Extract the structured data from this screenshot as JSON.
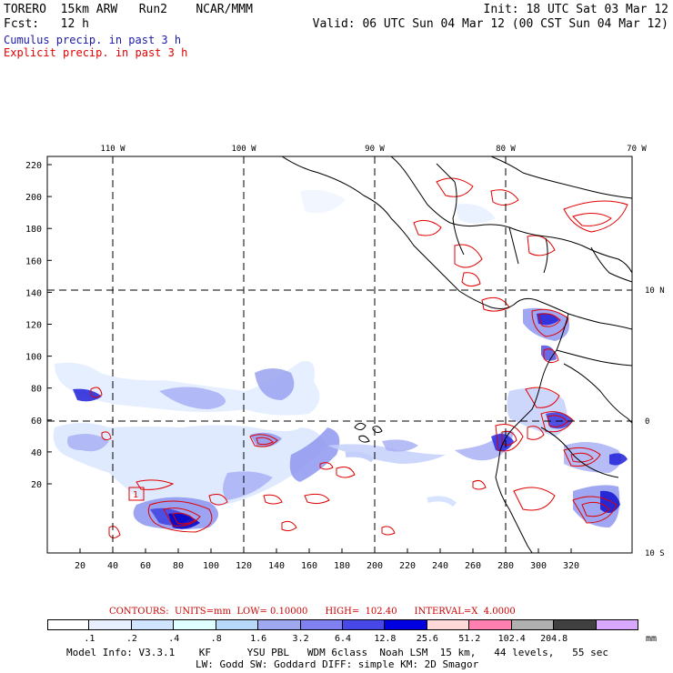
{
  "header": {
    "line1_left": "TORERO  15km ARW   Run2    NCAR/MMM",
    "line1_right": "Init: 18 UTC Sat 03 Mar 12",
    "line2_left": "Fcst:   12 h",
    "line2_right": "Valid: 06 UTC Sun 04 Mar 12 (00 CST Sun 04 Mar 12)"
  },
  "legend": {
    "cumulus": "Cumulus precip. in past 3 h",
    "explicit": "Explicit precip. in past 3 h",
    "cumulus_color": "#1a1aa6",
    "explicit_color": "#e00000"
  },
  "map": {
    "lon_labels": [
      "110 W",
      "100 W",
      "90 W",
      "80 W",
      "70 W"
    ],
    "lat_labels": [
      "10 N",
      "0",
      "10 S"
    ],
    "x_ticks": [
      "20",
      "40",
      "60",
      "80",
      "100",
      "120",
      "140",
      "160",
      "180",
      "200",
      "220",
      "240",
      "260",
      "280",
      "300",
      "320"
    ],
    "y_ticks": [
      "220",
      "200",
      "180",
      "160",
      "140",
      "120",
      "100",
      "80",
      "60",
      "40",
      "20"
    ],
    "station_marker": "1"
  },
  "contour_info": "CONTOURS:  UNITS=mm  LOW= 0.10000      HIGH=  102.40      INTERVAL=X  4.0000",
  "colorbar": {
    "colors": [
      "#ffffff",
      "#e8f0ff",
      "#d0e4ff",
      "#e0ffff",
      "#b8d8f8",
      "#a0a8f0",
      "#8080f0",
      "#4848e8",
      "#0000e0",
      "#ffd8d8",
      "#ff80b0",
      "#b0b0b0",
      "#404040",
      "#d8a8ff"
    ],
    "labels": [
      ".1",
      ".2",
      ".4",
      ".8",
      "1.6",
      "3.2",
      "6.4",
      "12.8",
      "25.6",
      "51.2",
      "102.4",
      "204.8"
    ],
    "unit": "mm"
  },
  "footer": {
    "line1": "Model Info: V3.3.1    KF      YSU PBL   WDM 6class  Noah LSM  15 km,   44 levels,   55 sec",
    "line2": "LW: Godd SW: Goddard DIFF: simple KM: 2D Smagor"
  }
}
